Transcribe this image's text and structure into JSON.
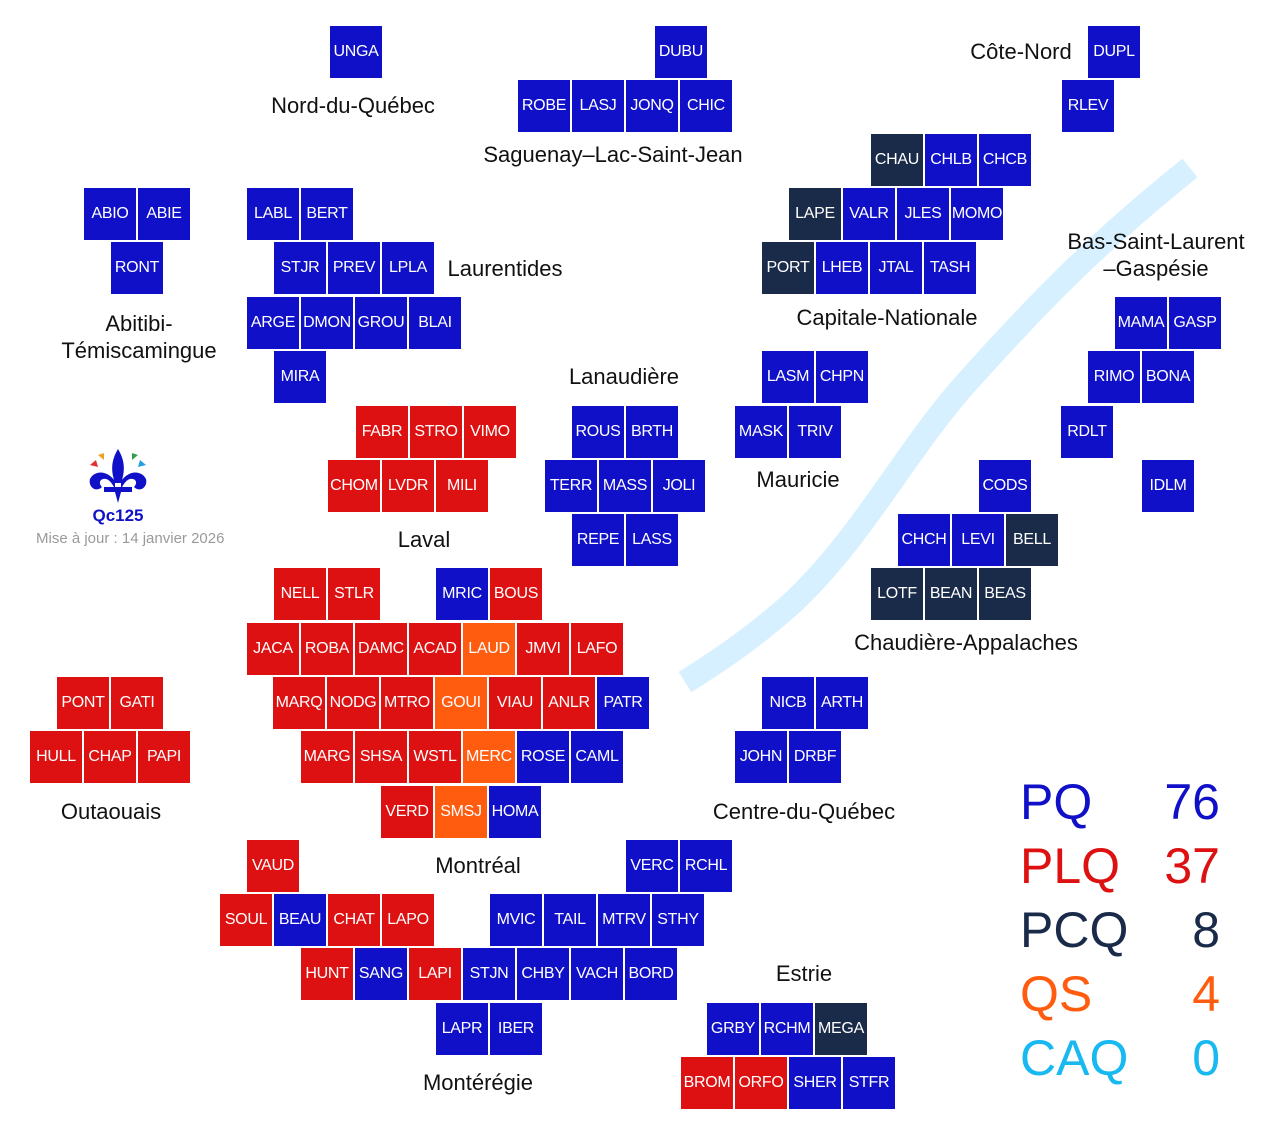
{
  "colors": {
    "PQ": "#1010c8",
    "PLQ": "#dd1111",
    "PCQ": "#1a2b4a",
    "QS": "#ff5c10",
    "CAQ": "#18b8f0",
    "river": "#d6f0ff"
  },
  "regions": [
    {
      "id": "nord-du-quebec",
      "text": "Nord-du-Québec"
    },
    {
      "id": "saguenay",
      "text": "Saguenay–Lac-Saint-Jean"
    },
    {
      "id": "cote-nord",
      "text": "Côte-Nord"
    },
    {
      "id": "laurentides",
      "text": "Laurentides"
    },
    {
      "id": "bas-saint-laurent",
      "text": "Bas-Saint-Laurent\n–Gaspésie"
    },
    {
      "id": "abitibi",
      "text": "Abitibi-\nTémiscamingue"
    },
    {
      "id": "capitale-nationale",
      "text": "Capitale-Nationale"
    },
    {
      "id": "lanaudiere",
      "text": "Lanaudière"
    },
    {
      "id": "mauricie",
      "text": "Mauricie"
    },
    {
      "id": "laval",
      "text": "Laval"
    },
    {
      "id": "chaudiere-appalaches",
      "text": "Chaudière-Appalaches"
    },
    {
      "id": "outaouais",
      "text": "Outaouais"
    },
    {
      "id": "centre-du-quebec",
      "text": "Centre-du-Québec"
    },
    {
      "id": "montreal",
      "text": "Montréal"
    },
    {
      "id": "estrie",
      "text": "Estrie"
    },
    {
      "id": "monteregie",
      "text": "Montérégie"
    }
  ],
  "ridings": [
    {
      "code": "UNGA",
      "party": "PQ"
    },
    {
      "code": "DUBU",
      "party": "PQ"
    },
    {
      "code": "DUPL",
      "party": "PQ"
    },
    {
      "code": "ROBE",
      "party": "PQ"
    },
    {
      "code": "LASJ",
      "party": "PQ"
    },
    {
      "code": "JONQ",
      "party": "PQ"
    },
    {
      "code": "CHIC",
      "party": "PQ"
    },
    {
      "code": "RLEV",
      "party": "PQ"
    },
    {
      "code": "CHAU",
      "party": "PCQ"
    },
    {
      "code": "CHLB",
      "party": "PQ"
    },
    {
      "code": "CHCB",
      "party": "PQ"
    },
    {
      "code": "ABIO",
      "party": "PQ"
    },
    {
      "code": "ABIE",
      "party": "PQ"
    },
    {
      "code": "LABL",
      "party": "PQ"
    },
    {
      "code": "BERT",
      "party": "PQ"
    },
    {
      "code": "LAPE",
      "party": "PCQ"
    },
    {
      "code": "VALR",
      "party": "PQ"
    },
    {
      "code": "JLES",
      "party": "PQ"
    },
    {
      "code": "MOMO",
      "party": "PQ"
    },
    {
      "code": "RONT",
      "party": "PQ"
    },
    {
      "code": "STJR",
      "party": "PQ"
    },
    {
      "code": "PREV",
      "party": "PQ"
    },
    {
      "code": "LPLA",
      "party": "PQ"
    },
    {
      "code": "PORT",
      "party": "PCQ"
    },
    {
      "code": "LHEB",
      "party": "PQ"
    },
    {
      "code": "JTAL",
      "party": "PQ"
    },
    {
      "code": "TASH",
      "party": "PQ"
    },
    {
      "code": "ARGE",
      "party": "PQ"
    },
    {
      "code": "DMON",
      "party": "PQ"
    },
    {
      "code": "GROU",
      "party": "PQ"
    },
    {
      "code": "BLAI",
      "party": "PQ"
    },
    {
      "code": "MAMA",
      "party": "PQ"
    },
    {
      "code": "GASP",
      "party": "PQ"
    },
    {
      "code": "MIRA",
      "party": "PQ"
    },
    {
      "code": "LASM",
      "party": "PQ"
    },
    {
      "code": "CHPN",
      "party": "PQ"
    },
    {
      "code": "RIMO",
      "party": "PQ"
    },
    {
      "code": "BONA",
      "party": "PQ"
    },
    {
      "code": "FABR",
      "party": "PLQ"
    },
    {
      "code": "STRO",
      "party": "PLQ"
    },
    {
      "code": "VIMO",
      "party": "PLQ"
    },
    {
      "code": "ROUS",
      "party": "PQ"
    },
    {
      "code": "BRTH",
      "party": "PQ"
    },
    {
      "code": "MASK",
      "party": "PQ"
    },
    {
      "code": "TRIV",
      "party": "PQ"
    },
    {
      "code": "RDLT",
      "party": "PQ"
    },
    {
      "code": "CHOM",
      "party": "PLQ"
    },
    {
      "code": "LVDR",
      "party": "PLQ"
    },
    {
      "code": "MILI",
      "party": "PLQ"
    },
    {
      "code": "TERR",
      "party": "PQ"
    },
    {
      "code": "MASS",
      "party": "PQ"
    },
    {
      "code": "JOLI",
      "party": "PQ"
    },
    {
      "code": "CODS",
      "party": "PQ"
    },
    {
      "code": "IDLM",
      "party": "PQ"
    },
    {
      "code": "REPE",
      "party": "PQ"
    },
    {
      "code": "LASS",
      "party": "PQ"
    },
    {
      "code": "CHCH",
      "party": "PQ"
    },
    {
      "code": "LEVI",
      "party": "PQ"
    },
    {
      "code": "BELL",
      "party": "PCQ"
    },
    {
      "code": "NELL",
      "party": "PLQ"
    },
    {
      "code": "STLR",
      "party": "PLQ"
    },
    {
      "code": "MRIC",
      "party": "PQ"
    },
    {
      "code": "BOUS",
      "party": "PLQ"
    },
    {
      "code": "LOTF",
      "party": "PCQ"
    },
    {
      "code": "BEAN",
      "party": "PCQ"
    },
    {
      "code": "BEAS",
      "party": "PCQ"
    },
    {
      "code": "JACA",
      "party": "PLQ"
    },
    {
      "code": "ROBA",
      "party": "PLQ"
    },
    {
      "code": "DAMC",
      "party": "PLQ"
    },
    {
      "code": "ACAD",
      "party": "PLQ"
    },
    {
      "code": "LAUD",
      "party": "QS"
    },
    {
      "code": "JMVI",
      "party": "PLQ"
    },
    {
      "code": "LAFO",
      "party": "PLQ"
    },
    {
      "code": "PONT",
      "party": "PLQ"
    },
    {
      "code": "GATI",
      "party": "PLQ"
    },
    {
      "code": "MARQ",
      "party": "PLQ"
    },
    {
      "code": "NODG",
      "party": "PLQ"
    },
    {
      "code": "MTRO",
      "party": "PLQ"
    },
    {
      "code": "GOUI",
      "party": "QS"
    },
    {
      "code": "VIAU",
      "party": "PLQ"
    },
    {
      "code": "ANLR",
      "party": "PLQ"
    },
    {
      "code": "PATR",
      "party": "PQ"
    },
    {
      "code": "NICB",
      "party": "PQ"
    },
    {
      "code": "ARTH",
      "party": "PQ"
    },
    {
      "code": "HULL",
      "party": "PLQ"
    },
    {
      "code": "CHAP",
      "party": "PLQ"
    },
    {
      "code": "PAPI",
      "party": "PLQ"
    },
    {
      "code": "MARG",
      "party": "PLQ"
    },
    {
      "code": "SHSA",
      "party": "PLQ"
    },
    {
      "code": "WSTL",
      "party": "PLQ"
    },
    {
      "code": "MERC",
      "party": "QS"
    },
    {
      "code": "ROSE",
      "party": "PQ"
    },
    {
      "code": "CAML",
      "party": "PQ"
    },
    {
      "code": "JOHN",
      "party": "PQ"
    },
    {
      "code": "DRBF",
      "party": "PQ"
    },
    {
      "code": "VERD",
      "party": "PLQ"
    },
    {
      "code": "SMSJ",
      "party": "QS"
    },
    {
      "code": "HOMA",
      "party": "PQ"
    },
    {
      "code": "VAUD",
      "party": "PLQ"
    },
    {
      "code": "VERC",
      "party": "PQ"
    },
    {
      "code": "RCHL",
      "party": "PQ"
    },
    {
      "code": "SOUL",
      "party": "PLQ"
    },
    {
      "code": "BEAU",
      "party": "PQ"
    },
    {
      "code": "CHAT",
      "party": "PLQ"
    },
    {
      "code": "LAPO",
      "party": "PLQ"
    },
    {
      "code": "MVIC",
      "party": "PQ"
    },
    {
      "code": "TAIL",
      "party": "PQ"
    },
    {
      "code": "MTRV",
      "party": "PQ"
    },
    {
      "code": "STHY",
      "party": "PQ"
    },
    {
      "code": "HUNT",
      "party": "PLQ"
    },
    {
      "code": "SANG",
      "party": "PQ"
    },
    {
      "code": "LAPI",
      "party": "PLQ"
    },
    {
      "code": "STJN",
      "party": "PQ"
    },
    {
      "code": "CHBY",
      "party": "PQ"
    },
    {
      "code": "VACH",
      "party": "PQ"
    },
    {
      "code": "BORD",
      "party": "PQ"
    },
    {
      "code": "GRBY",
      "party": "PQ"
    },
    {
      "code": "RCHM",
      "party": "PQ"
    },
    {
      "code": "MEGA",
      "party": "PCQ"
    },
    {
      "code": "LAPR",
      "party": "PQ"
    },
    {
      "code": "IBER",
      "party": "PQ"
    },
    {
      "code": "BROM",
      "party": "PLQ"
    },
    {
      "code": "ORFO",
      "party": "PLQ"
    },
    {
      "code": "SHER",
      "party": "PQ"
    },
    {
      "code": "STFR",
      "party": "PQ"
    }
  ],
  "update_text": "Mise à jour : 14 janvier 2026",
  "logo_text": "Qc125",
  "seat_totals": [
    {
      "party": "PQ",
      "seats": "76"
    },
    {
      "party": "PLQ",
      "seats": "37"
    },
    {
      "party": "PCQ",
      "seats": "8"
    },
    {
      "party": "QS",
      "seats": "4"
    },
    {
      "party": "CAQ",
      "seats": "0"
    }
  ]
}
